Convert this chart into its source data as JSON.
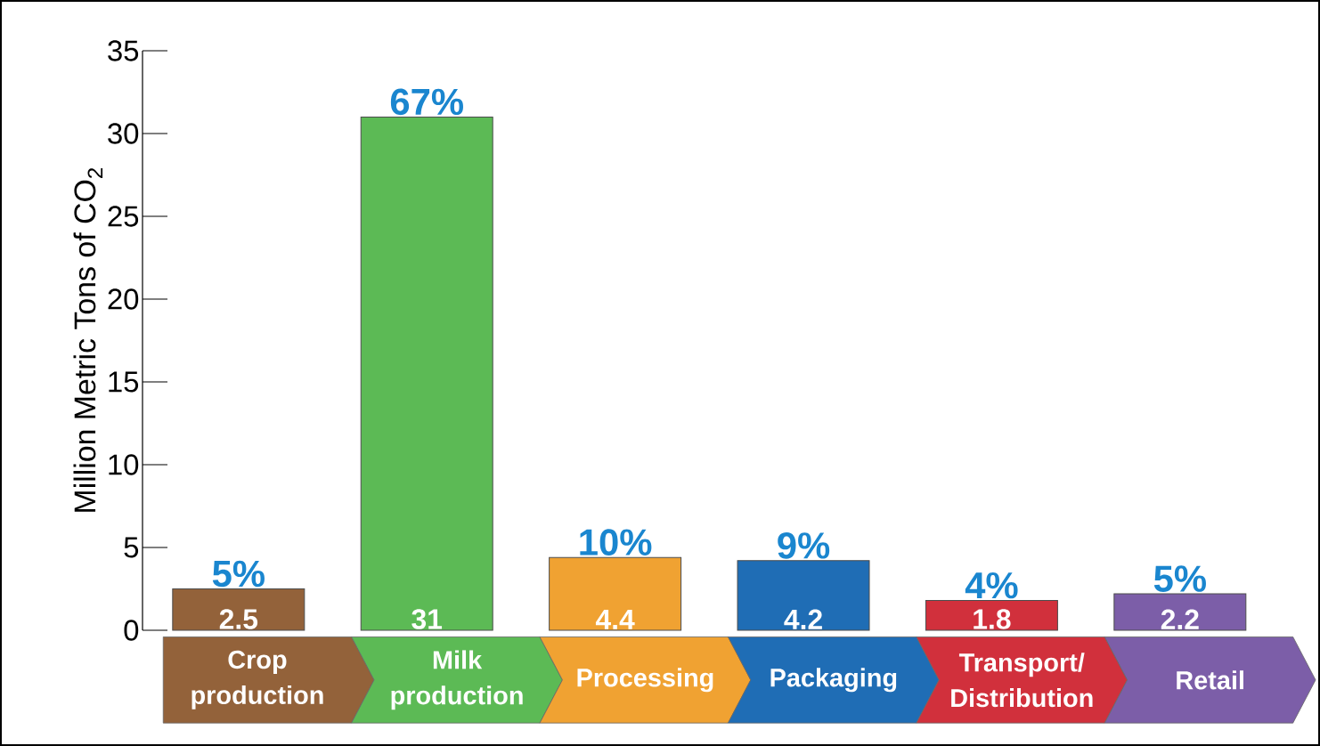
{
  "chart_data": {
    "type": "bar",
    "ylabel": "Million Metric Tons of CO$_{2}$",
    "categories": [
      "Crop production",
      "Milk production",
      "Processing",
      "Packaging",
      "Transport/ Distribution",
      "Retail"
    ],
    "values": [
      2.5,
      31,
      4.4,
      4.2,
      1.8,
      2.2
    ],
    "colors": [
      "#93623a",
      "#5cba55",
      "#f0a232",
      "#1f6db5",
      "#d1303c",
      "#7c5ea8"
    ],
    "data_labels": true,
    "ylim": [
      0,
      35
    ],
    "yticks": [
      0,
      5,
      10,
      15,
      20,
      25,
      30,
      35
    ],
    "annotations": [
      {
        "text": "5%",
        "x": "Crop production",
        "y": 2.5
      },
      {
        "text": "67%",
        "x": "Milk production",
        "y": 31
      },
      {
        "text": "10%",
        "x": "Processing",
        "y": 4.4
      },
      {
        "text": "9%",
        "x": "Packaging",
        "y": 4.2
      },
      {
        "text": "4%",
        "x": "Transport/ Distribution",
        "y": 1.8
      },
      {
        "text": "5%",
        "x": "Retail",
        "y": 2.2
      }
    ]
  }
}
